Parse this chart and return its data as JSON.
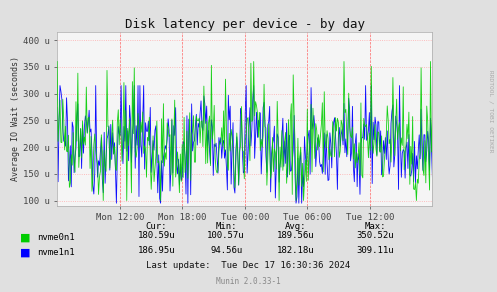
{
  "title": "Disk latency per device - by day",
  "ylabel": "Average IO Wait (seconds)",
  "background_color": "#e0e0e0",
  "plot_bg_color": "#f5f5f5",
  "grid_color_h": "#ffaaaa",
  "grid_color_v": "#ff6666",
  "yticks": [
    100,
    150,
    200,
    250,
    300,
    350,
    400
  ],
  "ytick_labels": [
    "100 u",
    "150 u",
    "200 u",
    "250 u",
    "300 u",
    "350 u",
    "400 u"
  ],
  "ylim": [
    90,
    415
  ],
  "xtick_labels": [
    "Mon 12:00",
    "Mon 18:00",
    "Tue 00:00",
    "Tue 06:00",
    "Tue 12:00"
  ],
  "color_nvme0n1": "#00cc00",
  "color_nvme1n1": "#0000ff",
  "legend_nvme0n1": "nvme0n1",
  "legend_nvme1n1": "nvme1n1",
  "cur_nvme0n1": "180.59u",
  "min_nvme0n1": "100.57u",
  "avg_nvme0n1": "189.56u",
  "max_nvme0n1": "350.52u",
  "cur_nvme1n1": "186.95u",
  "min_nvme1n1": "94.56u",
  "avg_nvme1n1": "182.18u",
  "max_nvme1n1": "309.11u",
  "last_update": "Last update:  Tue Dec 17 16:30:36 2024",
  "munin_version": "Munin 2.0.33-1",
  "rrdtool_label": "RRDTOOL / TOBI OETIKER"
}
